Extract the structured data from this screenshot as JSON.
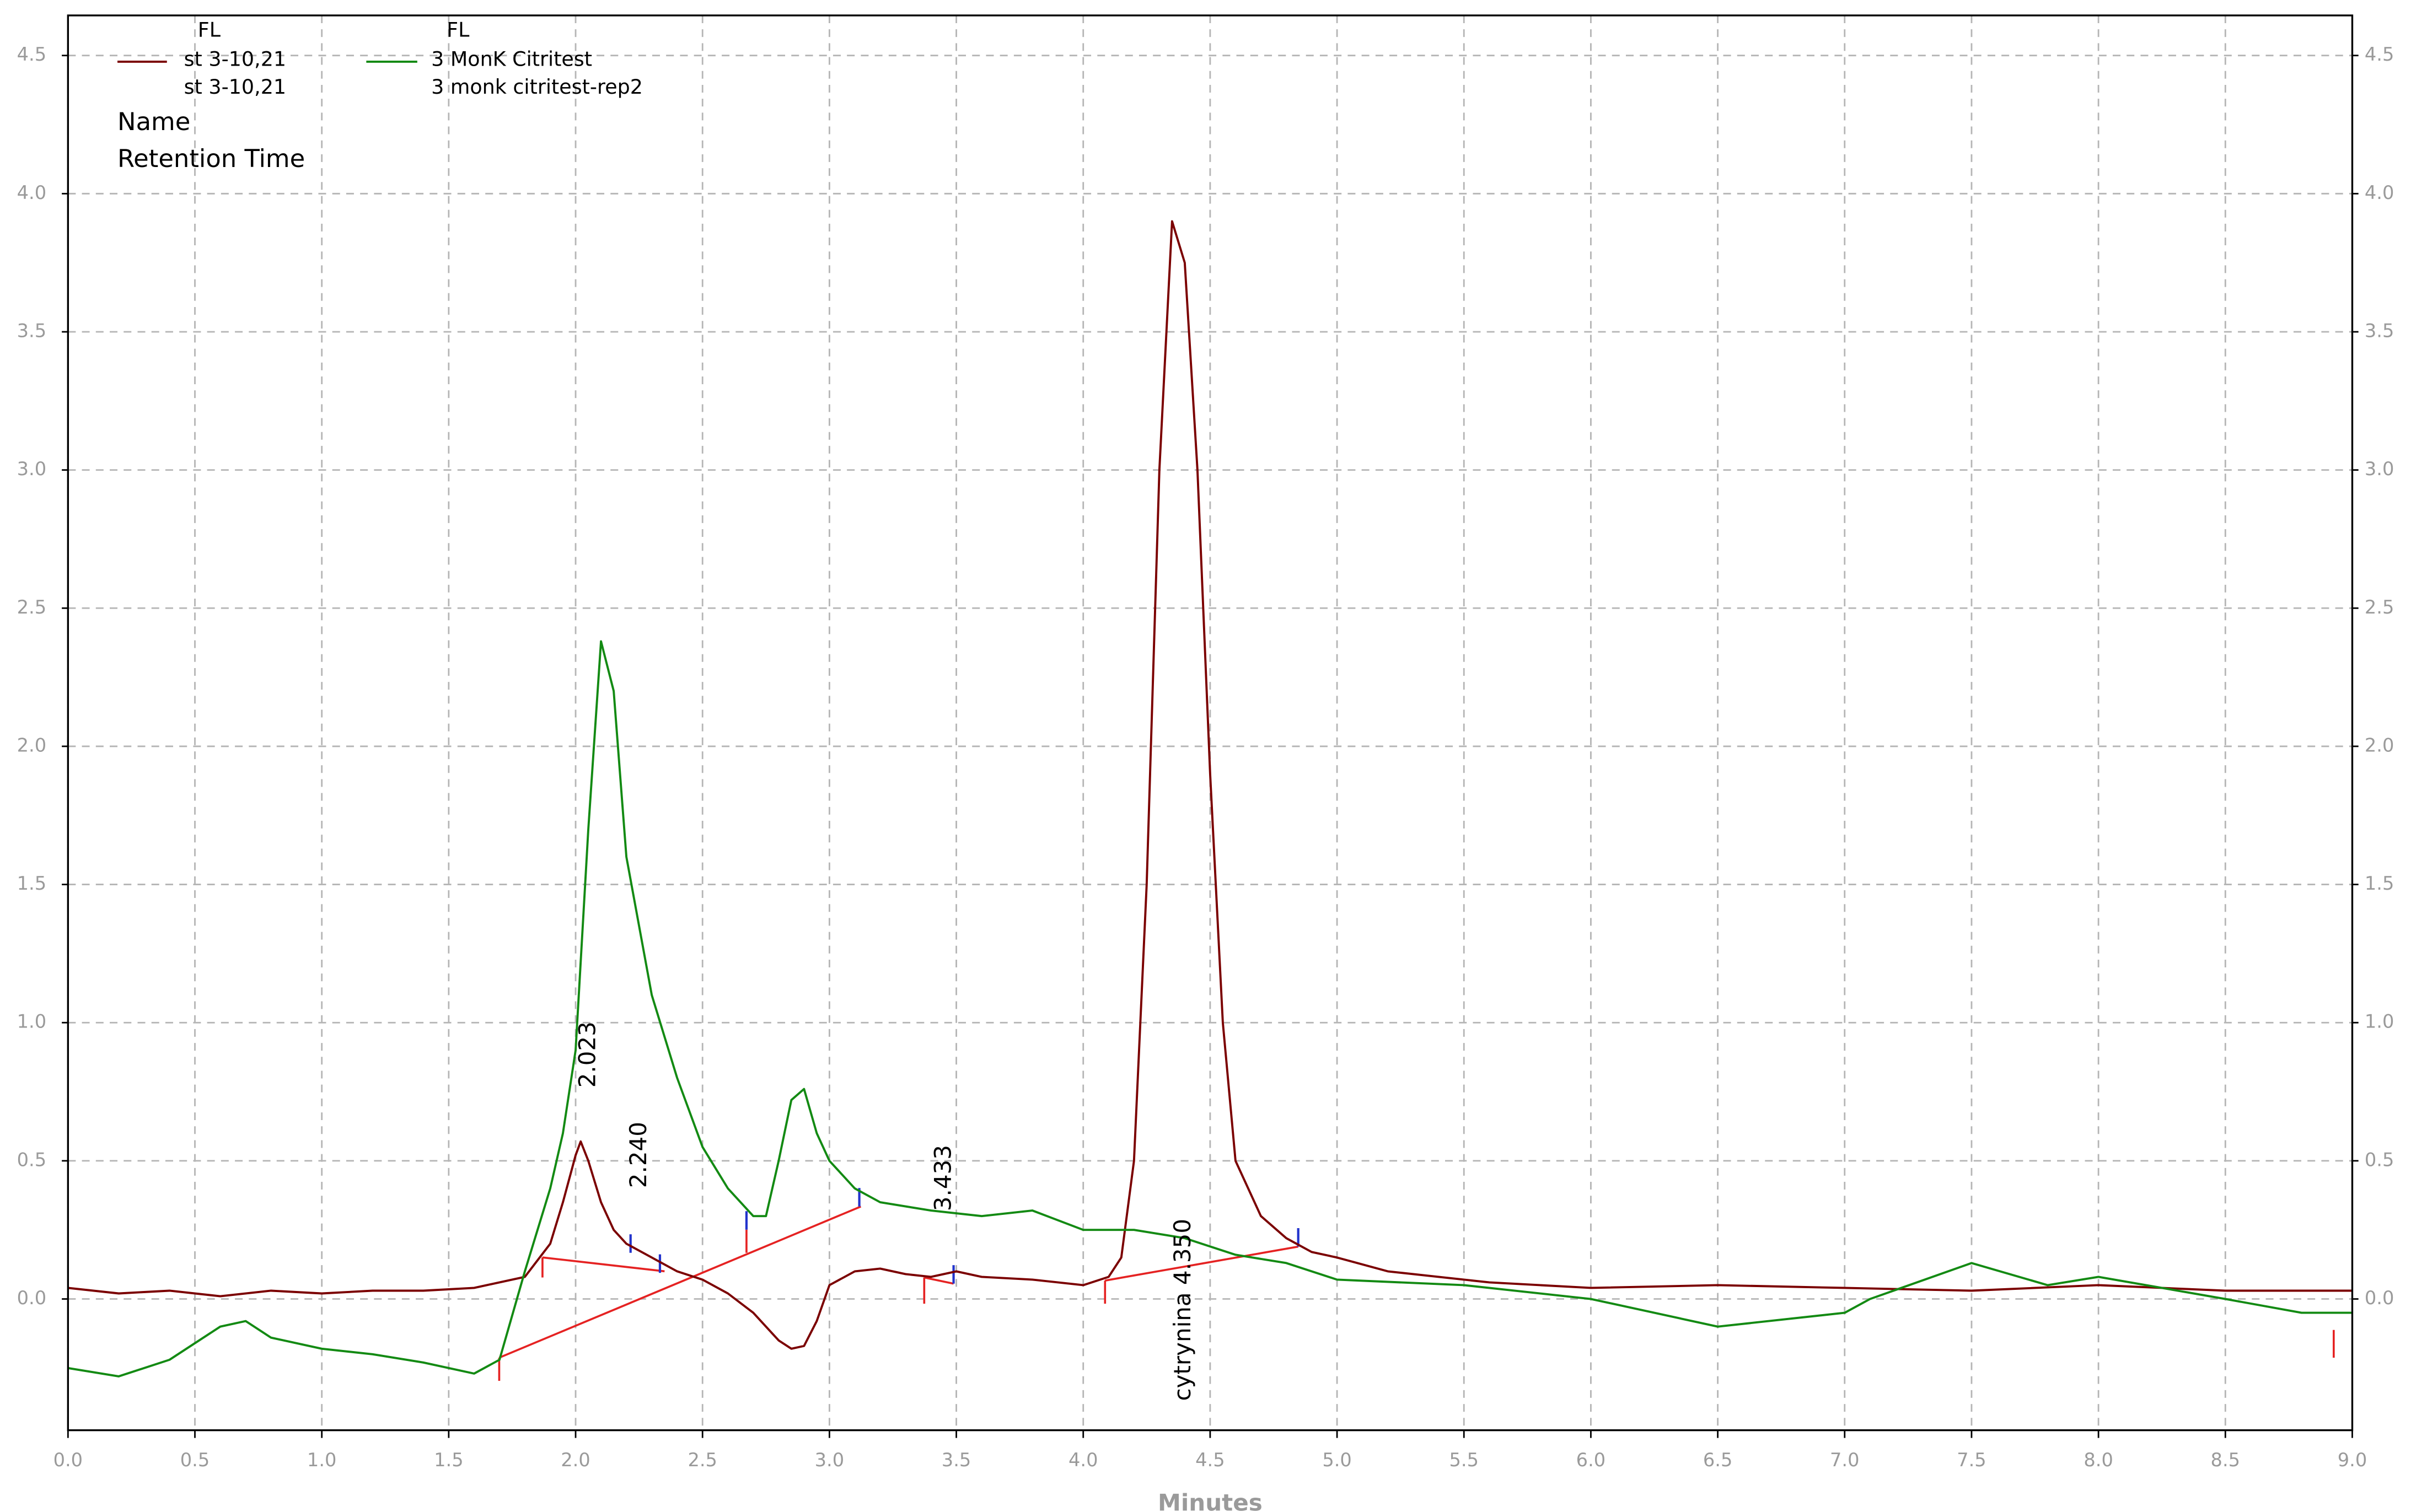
{
  "chart_data": {
    "type": "line",
    "x_label": "Minutes",
    "xlim": [
      0,
      9
    ],
    "ylim": [
      -0.475,
      4.645
    ],
    "grid": true,
    "xticks": [
      {
        "value": 0,
        "label": "0.0"
      },
      {
        "value": 0.5,
        "label": "0.5"
      },
      {
        "value": 1,
        "label": "1.0"
      },
      {
        "value": 1.5,
        "label": "1.5"
      },
      {
        "value": 2,
        "label": "2.0"
      },
      {
        "value": 2.5,
        "label": "2.5"
      },
      {
        "value": 3,
        "label": "3.0"
      },
      {
        "value": 3.5,
        "label": "3.5"
      },
      {
        "value": 4,
        "label": "4.0"
      },
      {
        "value": 4.5,
        "label": "4.5"
      },
      {
        "value": 5,
        "label": "5.0"
      },
      {
        "value": 5.5,
        "label": "5.5"
      },
      {
        "value": 6,
        "label": "6.0"
      },
      {
        "value": 6.5,
        "label": "6.5"
      },
      {
        "value": 7,
        "label": "7.0"
      },
      {
        "value": 7.5,
        "label": "7.5"
      },
      {
        "value": 8,
        "label": "8.0"
      },
      {
        "value": 8.5,
        "label": "8.5"
      },
      {
        "value": 9,
        "label": "9.0"
      }
    ],
    "yticks": [
      {
        "value": 0,
        "label": "0.0"
      },
      {
        "value": 0.5,
        "label": "0.5"
      },
      {
        "value": 1,
        "label": "1.0"
      },
      {
        "value": 1.5,
        "label": "1.5"
      },
      {
        "value": 2,
        "label": "2.0"
      },
      {
        "value": 2.5,
        "label": "2.5"
      },
      {
        "value": 3,
        "label": "3.0"
      },
      {
        "value": 3.5,
        "label": "3.5"
      },
      {
        "value": 4,
        "label": "4.0"
      },
      {
        "value": 4.5,
        "label": "4.5"
      }
    ],
    "legend_fields": [
      "Name",
      "Retention Time"
    ],
    "annotations": [
      "2.023",
      "2.240",
      "3.433",
      "cytrynina 4.350"
    ],
    "series": [
      {
        "detector": "FL",
        "name": "st 3-10,21",
        "sample": "st 3-10,21",
        "color": "#7b0000",
        "x": [
          0,
          0.2,
          0.4,
          0.6,
          0.8,
          1.0,
          1.2,
          1.4,
          1.6,
          1.8,
          1.9,
          1.95,
          2.0,
          2.02,
          2.05,
          2.1,
          2.15,
          2.2,
          2.3,
          2.4,
          2.5,
          2.6,
          2.7,
          2.8,
          2.85,
          2.9,
          2.95,
          3.0,
          3.1,
          3.2,
          3.3,
          3.4,
          3.5,
          3.6,
          3.8,
          4.0,
          4.1,
          4.15,
          4.2,
          4.25,
          4.3,
          4.35,
          4.4,
          4.45,
          4.5,
          4.55,
          4.6,
          4.7,
          4.8,
          4.9,
          5.0,
          5.2,
          5.4,
          5.6,
          5.8,
          6.0,
          6.5,
          7.0,
          7.5,
          8.0,
          8.5,
          9.0
        ],
        "values": [
          0.04,
          0.02,
          0.03,
          0.01,
          0.03,
          0.02,
          0.03,
          0.03,
          0.04,
          0.08,
          0.2,
          0.35,
          0.52,
          0.57,
          0.5,
          0.35,
          0.25,
          0.2,
          0.15,
          0.1,
          0.07,
          0.02,
          -0.05,
          -0.15,
          -0.18,
          -0.17,
          -0.08,
          0.05,
          0.1,
          0.11,
          0.09,
          0.08,
          0.1,
          0.08,
          0.07,
          0.05,
          0.08,
          0.15,
          0.5,
          1.5,
          3.0,
          3.9,
          3.75,
          3.0,
          1.9,
          1.0,
          0.5,
          0.3,
          0.22,
          0.17,
          0.15,
          0.1,
          0.08,
          0.06,
          0.05,
          0.04,
          0.05,
          0.04,
          0.03,
          0.05,
          0.03,
          0.03
        ]
      },
      {
        "detector": "FL",
        "name": "3 MonK Citritest",
        "sample": "3 monk citritest-rep2",
        "color": "#138a13",
        "x": [
          0,
          0.2,
          0.4,
          0.6,
          0.7,
          0.8,
          1.0,
          1.2,
          1.4,
          1.6,
          1.7,
          1.8,
          1.9,
          1.95,
          2.0,
          2.05,
          2.1,
          2.15,
          2.2,
          2.3,
          2.4,
          2.5,
          2.6,
          2.7,
          2.75,
          2.8,
          2.85,
          2.9,
          2.95,
          3.0,
          3.1,
          3.2,
          3.4,
          3.6,
          3.8,
          4.0,
          4.2,
          4.4,
          4.6,
          4.8,
          5.0,
          5.5,
          6.0,
          6.5,
          7.0,
          7.1,
          7.5,
          7.8,
          8.0,
          8.5,
          8.8,
          9.0
        ],
        "values": [
          -0.25,
          -0.28,
          -0.22,
          -0.1,
          -0.08,
          -0.14,
          -0.18,
          -0.2,
          -0.23,
          -0.27,
          -0.22,
          0.1,
          0.4,
          0.6,
          0.9,
          1.7,
          2.38,
          2.2,
          1.6,
          1.1,
          0.8,
          0.55,
          0.4,
          0.3,
          0.3,
          0.5,
          0.72,
          0.76,
          0.6,
          0.5,
          0.4,
          0.35,
          0.32,
          0.3,
          0.32,
          0.25,
          0.25,
          0.22,
          0.16,
          0.13,
          0.07,
          0.05,
          0.0,
          -0.1,
          -0.05,
          0.0,
          0.13,
          0.05,
          0.08,
          0.0,
          -0.05,
          -0.05
        ]
      }
    ]
  }
}
